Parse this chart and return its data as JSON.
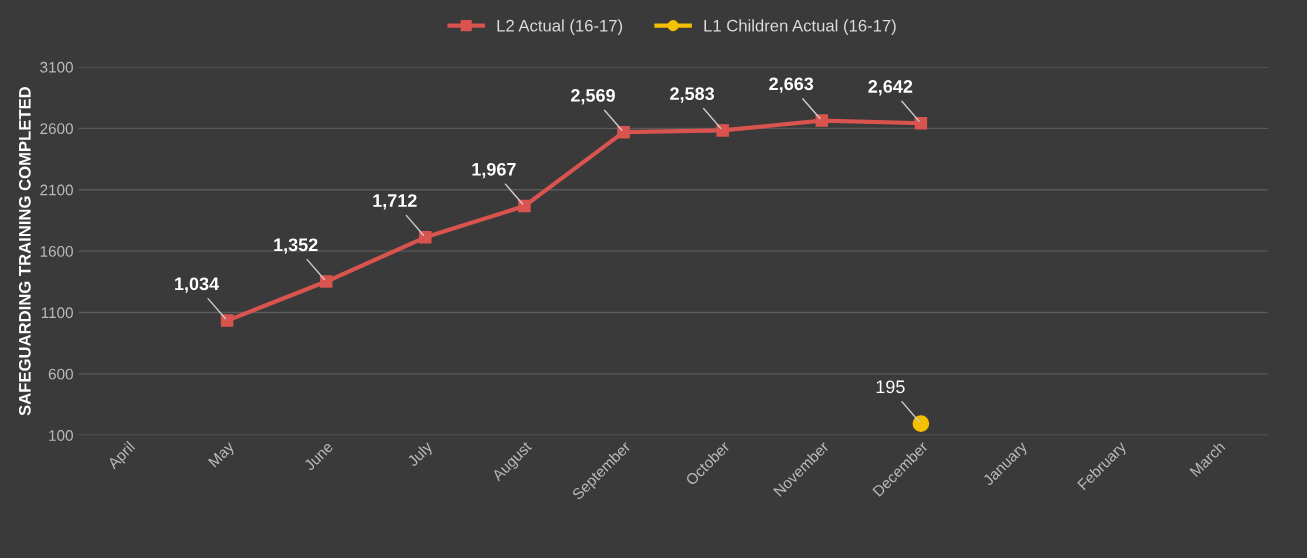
{
  "chart_data": {
    "type": "line",
    "ylabel": "SAFEGUARDING TRAINING COMPLETED",
    "categories": [
      "April",
      "May",
      "June",
      "July",
      "August",
      "September",
      "October",
      "November",
      "December",
      "January",
      "February",
      "March"
    ],
    "series": [
      {
        "name": "L2 Actual (16-17)",
        "color": "#d9534f",
        "marker": "square",
        "values": [
          null,
          1034,
          1352,
          1712,
          1967,
          2569,
          2583,
          2663,
          2642,
          null,
          null,
          null
        ],
        "value_labels": [
          null,
          "1,034",
          "1,352",
          "1,712",
          "1,967",
          "2,569",
          "2,583",
          "2,663",
          "2,642",
          null,
          null,
          null
        ]
      },
      {
        "name": "L1 Children Actual (16-17)",
        "color": "#f5c000",
        "marker": "circle",
        "values": [
          null,
          null,
          null,
          null,
          null,
          null,
          null,
          null,
          195,
          null,
          null,
          null
        ],
        "value_labels": [
          null,
          null,
          null,
          null,
          null,
          null,
          null,
          null,
          "195",
          null,
          null,
          null
        ]
      }
    ],
    "ylim": [
      100,
      3100
    ],
    "yticks": [
      100,
      600,
      1100,
      1600,
      2100,
      2600,
      3100
    ],
    "grid": "y",
    "legend": "top",
    "line_style": "solid"
  }
}
